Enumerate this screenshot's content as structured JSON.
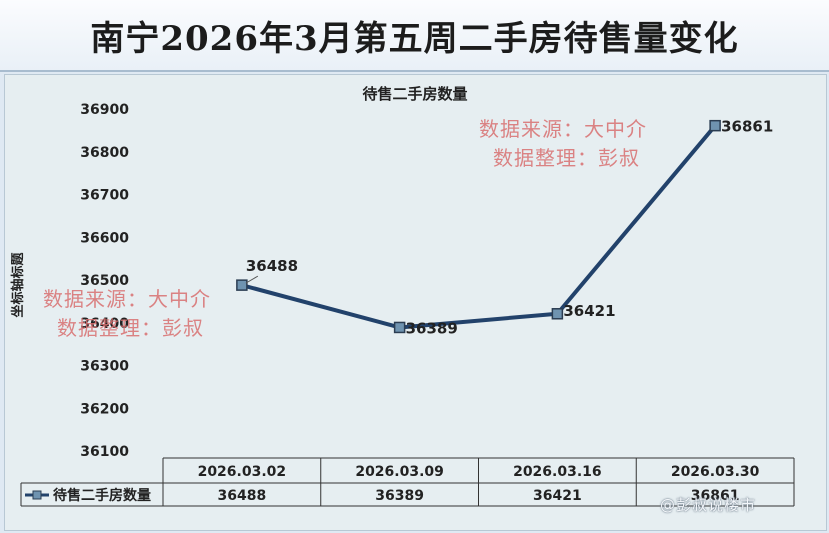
{
  "banner": {
    "title": "南宁2026年3月第五周二手房待售量变化"
  },
  "chart_data": {
    "type": "line",
    "title": "待售二手房数量",
    "xlabel": "",
    "ylabel": "坐标轴标题",
    "categories": [
      "2026.03.02",
      "2026.03.09",
      "2026.03.16",
      "2026.03.30"
    ],
    "series": [
      {
        "name": "待售二手房数量",
        "values": [
          36488,
          36389,
          36421,
          36861
        ]
      }
    ],
    "ylim": [
      36100,
      36900
    ],
    "yticks": [
      36100,
      36200,
      36300,
      36400,
      36500,
      36600,
      36700,
      36800,
      36900
    ],
    "grid": false,
    "legend": "data-table-left",
    "data_table": true,
    "line_color": "#22426b",
    "marker_color": "#6f93b0"
  },
  "watermarks": [
    {
      "line1": "数据来源：大中介",
      "line2": "数据整理：彭叔"
    },
    {
      "line1": "数据来源：大中介",
      "line2": "数据整理：彭叔"
    }
  ],
  "footer": {
    "text": "@彭叔说楼市"
  }
}
